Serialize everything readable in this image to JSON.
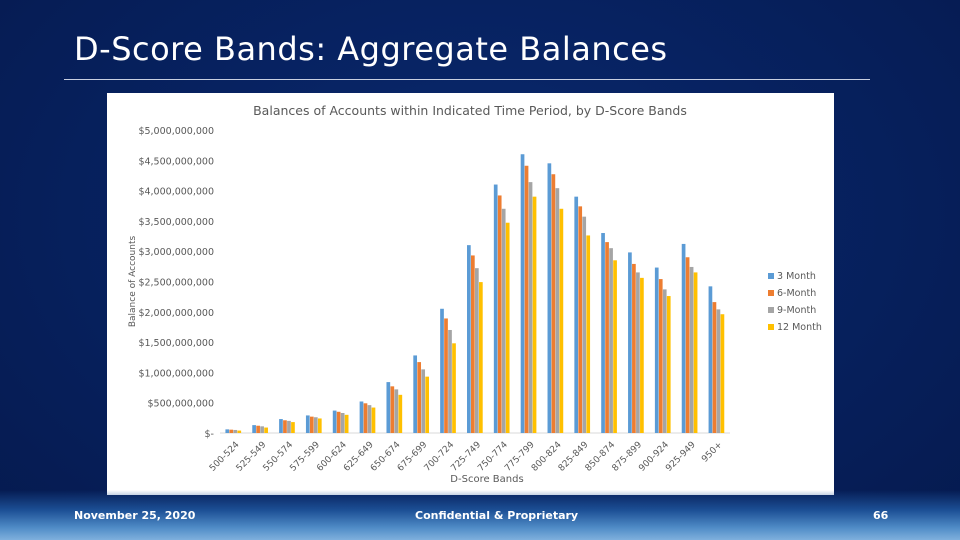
{
  "slide": {
    "title": "D-Score Bands:  Aggregate Balances",
    "footer_date": "November 25, 2020",
    "footer_center": "Confidential & Proprietary",
    "page_number": "66"
  },
  "chart_data": {
    "type": "bar",
    "title": "Balances of Accounts within Indicated Time Period, by D-Score Bands",
    "xlabel": "D-Score Bands",
    "ylabel": "Balance of Accounts",
    "ylim": [
      0,
      5000000000
    ],
    "yticks": [
      0,
      500000000,
      1000000000,
      1500000000,
      2000000000,
      2500000000,
      3000000000,
      3500000000,
      4000000000,
      4500000000,
      5000000000
    ],
    "ytick_labels": [
      "$-",
      "$500,000,000",
      "$1,000,000,000",
      "$1,500,000,000",
      "$2,000,000,000",
      "$2,500,000,000",
      "$3,000,000,000",
      "$3,500,000,000",
      "$4,000,000,000",
      "$4,500,000,000",
      "$5,000,000,000"
    ],
    "legend_position": "right",
    "categories": [
      "500-524",
      "525-549",
      "550-574",
      "575-599",
      "600-624",
      "625-649",
      "650-674",
      "675-699",
      "700-724",
      "725-749",
      "750-774",
      "775-799",
      "800-824",
      "825-849",
      "850-874",
      "875-899",
      "900-924",
      "925-949",
      "950+"
    ],
    "category_labels_shown": [
      "500-524",
      "525-549",
      "550-574",
      "575-599",
      "600-624",
      "625-649",
      "650-674",
      "675-699",
      "700-724",
      "725-749",
      "750-774",
      "775-799",
      "800-824",
      "825-849",
      "850-874",
      "875-899",
      "900-924",
      "925-949",
      "950+"
    ],
    "series": [
      {
        "name": "3 Month",
        "color": "#5b9bd5",
        "values": [
          60000000,
          130000000,
          230000000,
          290000000,
          370000000,
          520000000,
          840000000,
          1280000000,
          2050000000,
          3100000000,
          4100000000,
          4600000000,
          4450000000,
          3900000000,
          3300000000,
          2980000000,
          2730000000,
          3120000000,
          2420000000
        ]
      },
      {
        "name": "6-Month",
        "color": "#ed7d31",
        "values": [
          55000000,
          120000000,
          210000000,
          270000000,
          350000000,
          490000000,
          770000000,
          1170000000,
          1890000000,
          2930000000,
          3920000000,
          4410000000,
          4270000000,
          3740000000,
          3150000000,
          2790000000,
          2540000000,
          2900000000,
          2160000000
        ]
      },
      {
        "name": "9-Month",
        "color": "#a5a5a5",
        "values": [
          50000000,
          110000000,
          200000000,
          260000000,
          330000000,
          460000000,
          720000000,
          1050000000,
          1700000000,
          2720000000,
          3700000000,
          4140000000,
          4040000000,
          3570000000,
          3050000000,
          2650000000,
          2370000000,
          2740000000,
          2040000000
        ]
      },
      {
        "name": "12 Month",
        "color": "#ffc000",
        "values": [
          40000000,
          90000000,
          180000000,
          240000000,
          300000000,
          420000000,
          630000000,
          930000000,
          1480000000,
          2490000000,
          3470000000,
          3900000000,
          3700000000,
          3260000000,
          2850000000,
          2560000000,
          2260000000,
          2650000000,
          1960000000
        ]
      }
    ]
  }
}
